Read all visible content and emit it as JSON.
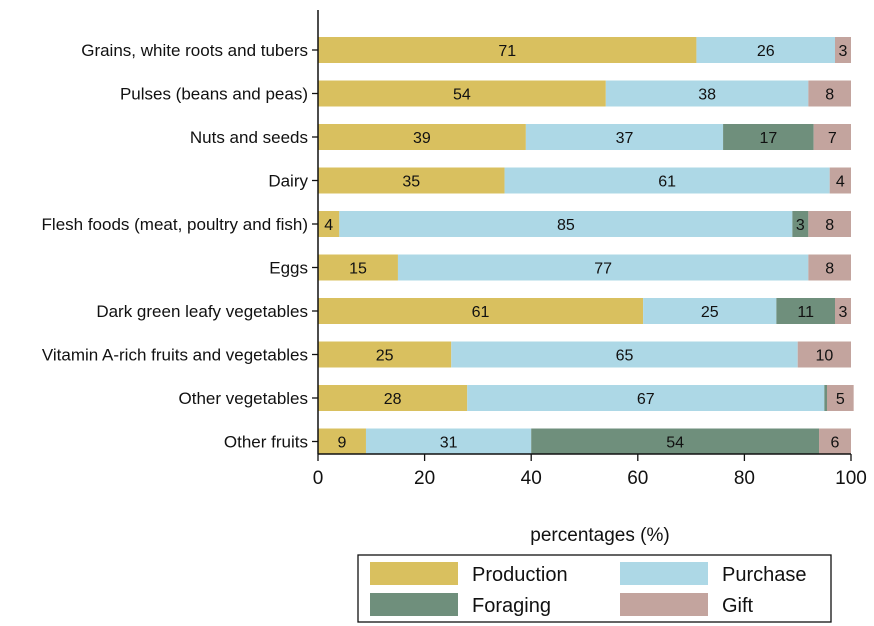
{
  "chart_data": {
    "type": "bar",
    "orientation": "horizontal",
    "stacked": true,
    "categories": [
      "Grains, white roots and tubers",
      "Pulses (beans and peas)",
      "Nuts and seeds",
      "Dairy",
      "Flesh foods (meat, poultry and fish)",
      "Eggs",
      "Dark green leafy vegetables",
      "Vitamin A-rich fruits and vegetables",
      "Other vegetables",
      "Other fruits"
    ],
    "series": [
      {
        "name": "Production",
        "color": "#d9c05f",
        "values": [
          71,
          54,
          39,
          35,
          4,
          15,
          61,
          25,
          28,
          9
        ]
      },
      {
        "name": "Purchase",
        "color": "#add8e6",
        "values": [
          26,
          38,
          37,
          61,
          85,
          77,
          25,
          65,
          67,
          31
        ]
      },
      {
        "name": "Foraging",
        "color": "#6f8f7c",
        "values": [
          0,
          0,
          17,
          0,
          3,
          0,
          11,
          0,
          0.5,
          54
        ]
      },
      {
        "name": "Gift",
        "color": "#c3a49e",
        "values": [
          3,
          8,
          7,
          4,
          8,
          8,
          3,
          10,
          5,
          6
        ]
      }
    ],
    "data_labels": [
      [
        "71",
        "26",
        "",
        "3"
      ],
      [
        "54",
        "38",
        "",
        "8"
      ],
      [
        "39",
        "37",
        "17",
        "7"
      ],
      [
        "35",
        "61",
        "",
        "4"
      ],
      [
        "4",
        "85",
        "3",
        "8"
      ],
      [
        "15",
        "77",
        "",
        "8"
      ],
      [
        "61",
        "25",
        "11",
        "3"
      ],
      [
        "25",
        "65",
        "",
        "10"
      ],
      [
        "28",
        "67",
        "",
        "5"
      ],
      [
        "9",
        "31",
        "54",
        "6"
      ]
    ],
    "title": "",
    "xlabel": "percentages (%)",
    "ylabel": "",
    "xlim": [
      0,
      100
    ],
    "xticks": [
      0,
      20,
      40,
      60,
      80,
      100
    ],
    "grid": false,
    "legend": {
      "placement": "bottom",
      "columns": 2,
      "entries": [
        "Production",
        "Purchase",
        "Foraging",
        "Gift"
      ]
    }
  }
}
